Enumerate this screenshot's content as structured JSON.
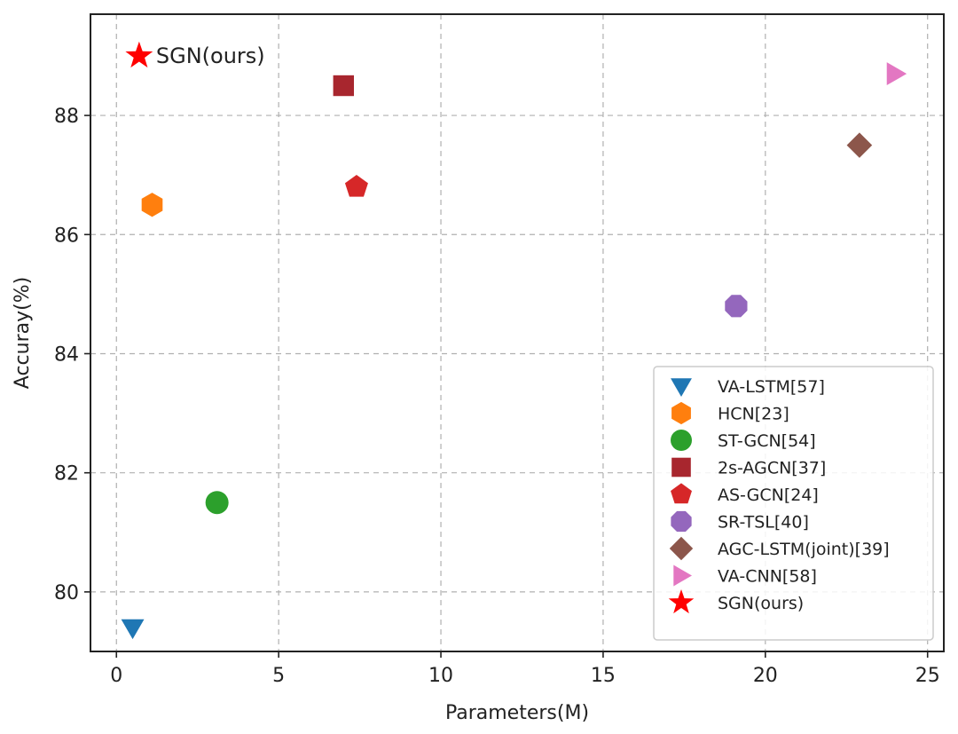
{
  "chart_data": {
    "type": "scatter",
    "xlabel": "Parameters(M)",
    "ylabel": "Accuray(%)",
    "xlim": [
      -0.8,
      25.5
    ],
    "ylim": [
      79.0,
      89.7
    ],
    "xticks": [
      0,
      5,
      10,
      15,
      20,
      25
    ],
    "yticks": [
      80,
      82,
      84,
      86,
      88
    ],
    "grid": true,
    "legend_position": "bottom-right",
    "series": [
      {
        "name": "VA-LSTM[57]",
        "marker": "triangle-down",
        "color": "#1f77b4",
        "x": 0.5,
        "y": 79.4
      },
      {
        "name": "HCN[23]",
        "marker": "hexagon",
        "color": "#ff7f0e",
        "x": 1.1,
        "y": 86.5
      },
      {
        "name": "ST-GCN[54]",
        "marker": "circle",
        "color": "#2ca02c",
        "x": 3.1,
        "y": 81.5
      },
      {
        "name": "2s-AGCN[37]",
        "marker": "square",
        "color": "#a8262e",
        "x": 7.0,
        "y": 88.5
      },
      {
        "name": "AS-GCN[24]",
        "marker": "pentagon",
        "color": "#d62728",
        "x": 7.4,
        "y": 86.8
      },
      {
        "name": "SR-TSL[40]",
        "marker": "octagon",
        "color": "#9467bd",
        "x": 19.1,
        "y": 84.8
      },
      {
        "name": "AGC-LSTM(joint)[39]",
        "marker": "diamond",
        "color": "#8c564b",
        "x": 22.9,
        "y": 87.5
      },
      {
        "name": "VA-CNN[58]",
        "marker": "triangle-right",
        "color": "#e377c2",
        "x": 24.0,
        "y": 88.7
      },
      {
        "name": "SGN(ours)",
        "marker": "star",
        "color": "#ff0000",
        "x": 0.7,
        "y": 89.0
      }
    ],
    "annotations": [
      {
        "text": "SGN(ours)",
        "x": 0.7,
        "y": 89.0
      }
    ]
  }
}
